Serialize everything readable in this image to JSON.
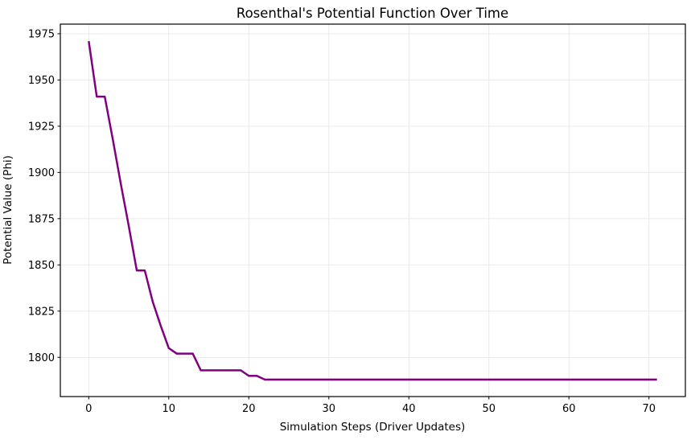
{
  "page": {
    "background": "#ffffff"
  },
  "chart_data": {
    "type": "line",
    "title": "Rosenthal's Potential Function Over Time",
    "xlabel": "Simulation Steps (Driver Updates)",
    "ylabel": "Potential Value (Phi)",
    "grid": true,
    "grid_color": "#e7e7e7",
    "axis_color": "#000000",
    "legend": "none",
    "xlim": [
      -3.55,
      74.55
    ],
    "ylim": [
      1778.8,
      1980.2
    ],
    "xticks": [
      0,
      10,
      20,
      30,
      40,
      50,
      60,
      70
    ],
    "yticks": [
      1800,
      1825,
      1850,
      1875,
      1900,
      1925,
      1950,
      1975
    ],
    "x_description": "simulation step index 0 through 71",
    "series": [
      {
        "name": "potential",
        "color": "#800080",
        "linewidth": 2.5,
        "values": [
          1971,
          1941,
          1941,
          1918,
          1894,
          1871,
          1847,
          1847,
          1830,
          1817,
          1805,
          1802,
          1802,
          1802,
          1793,
          1793,
          1793,
          1793,
          1793,
          1793,
          1790,
          1790,
          1788,
          1788,
          1788,
          1788,
          1788,
          1788,
          1788,
          1788,
          1788,
          1788,
          1788,
          1788,
          1788,
          1788,
          1788,
          1788,
          1788,
          1788,
          1788,
          1788,
          1788,
          1788,
          1788,
          1788,
          1788,
          1788,
          1788,
          1788,
          1788,
          1788,
          1788,
          1788,
          1788,
          1788,
          1788,
          1788,
          1788,
          1788,
          1788,
          1788,
          1788,
          1788,
          1788,
          1788,
          1788,
          1788,
          1788,
          1788,
          1788,
          1788
        ]
      }
    ]
  }
}
